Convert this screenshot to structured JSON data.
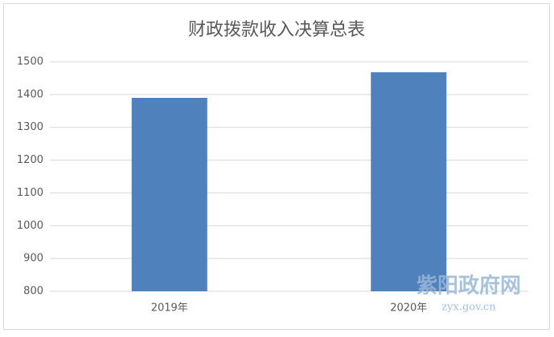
{
  "chart_data": {
    "type": "bar",
    "title": "财政拨款收入决算总表",
    "categories": [
      "2019年",
      "2020年"
    ],
    "values": [
      1390,
      1468
    ],
    "color": "#4f81bd",
    "ylim": [
      800,
      1500
    ],
    "yticks": [
      800,
      900,
      1000,
      1100,
      1200,
      1300,
      1400,
      1500
    ],
    "grid": true
  },
  "watermark": {
    "site": "紫阳政府网",
    "url": "zyx.gov.cn"
  }
}
